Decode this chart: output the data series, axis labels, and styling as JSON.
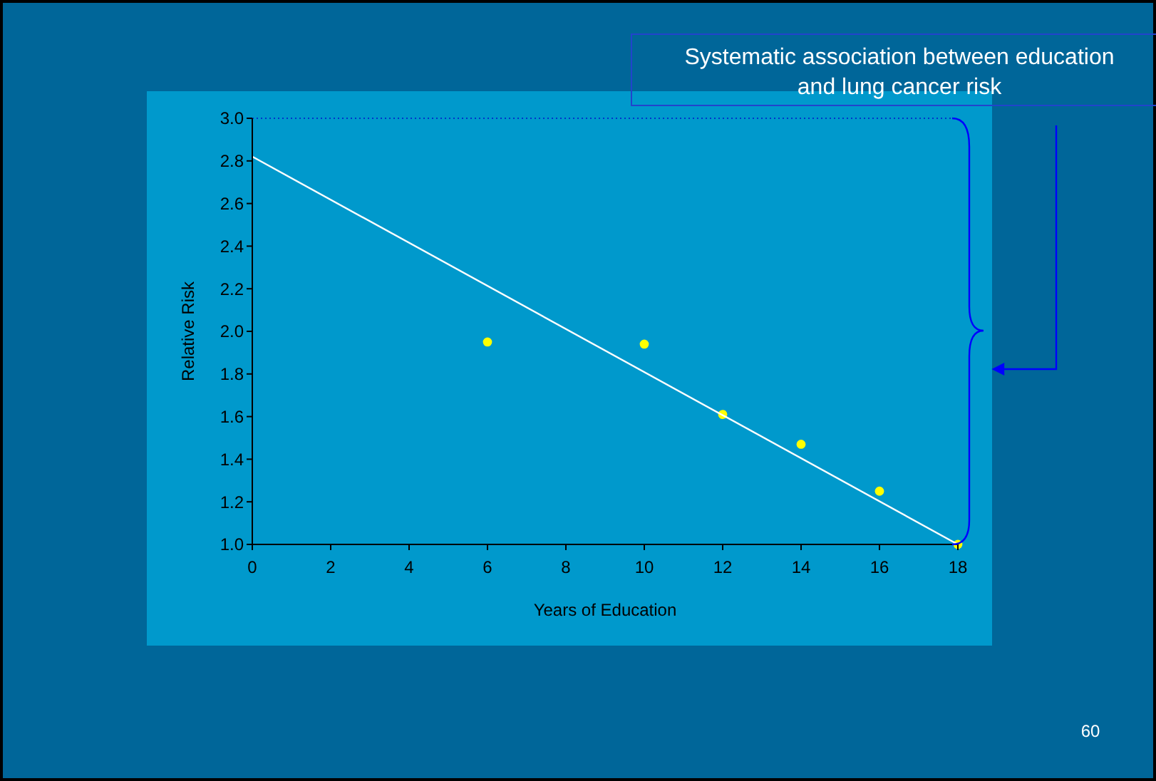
{
  "chart_data": {
    "type": "scatter",
    "title": "Systematic association between education and lung cancer risk",
    "xlabel": "Years of Education",
    "ylabel": "Relative Risk",
    "xlim": [
      0,
      18
    ],
    "ylim": [
      1.0,
      3.0
    ],
    "xticks": [
      0,
      2,
      4,
      6,
      8,
      10,
      12,
      14,
      16,
      18
    ],
    "yticks": [
      {
        "value": 1,
        "label": "1.0"
      },
      {
        "value": 1.2,
        "label": "1.2"
      },
      {
        "value": 1.4,
        "label": "1.4"
      },
      {
        "value": 1.6,
        "label": "1.6"
      },
      {
        "value": 1.8,
        "label": "1.8"
      },
      {
        "value": 2,
        "label": "2.0"
      },
      {
        "value": 2.2,
        "label": "2.2"
      },
      {
        "value": 2.4,
        "label": "2.4"
      },
      {
        "value": 2.6,
        "label": "2.6"
      },
      {
        "value": 2.8,
        "label": "2.8"
      },
      {
        "value": 3,
        "label": "3.0"
      }
    ],
    "grid": false,
    "marker": "circle",
    "annotations": [
      "60"
    ],
    "x": [
      6,
      10,
      12,
      14,
      16,
      18
    ],
    "series": [
      {
        "color": "#ffff00",
        "values": [
          1.95,
          1.94,
          1.61,
          1.47,
          1.25,
          1.0
        ]
      },
      {
        "type": "line",
        "color": "#ffffff",
        "x": [
          0,
          18
        ],
        "values": [
          2.82,
          1.0
        ],
        "marker": "none",
        "line_style": "solid"
      }
    ]
  }
}
